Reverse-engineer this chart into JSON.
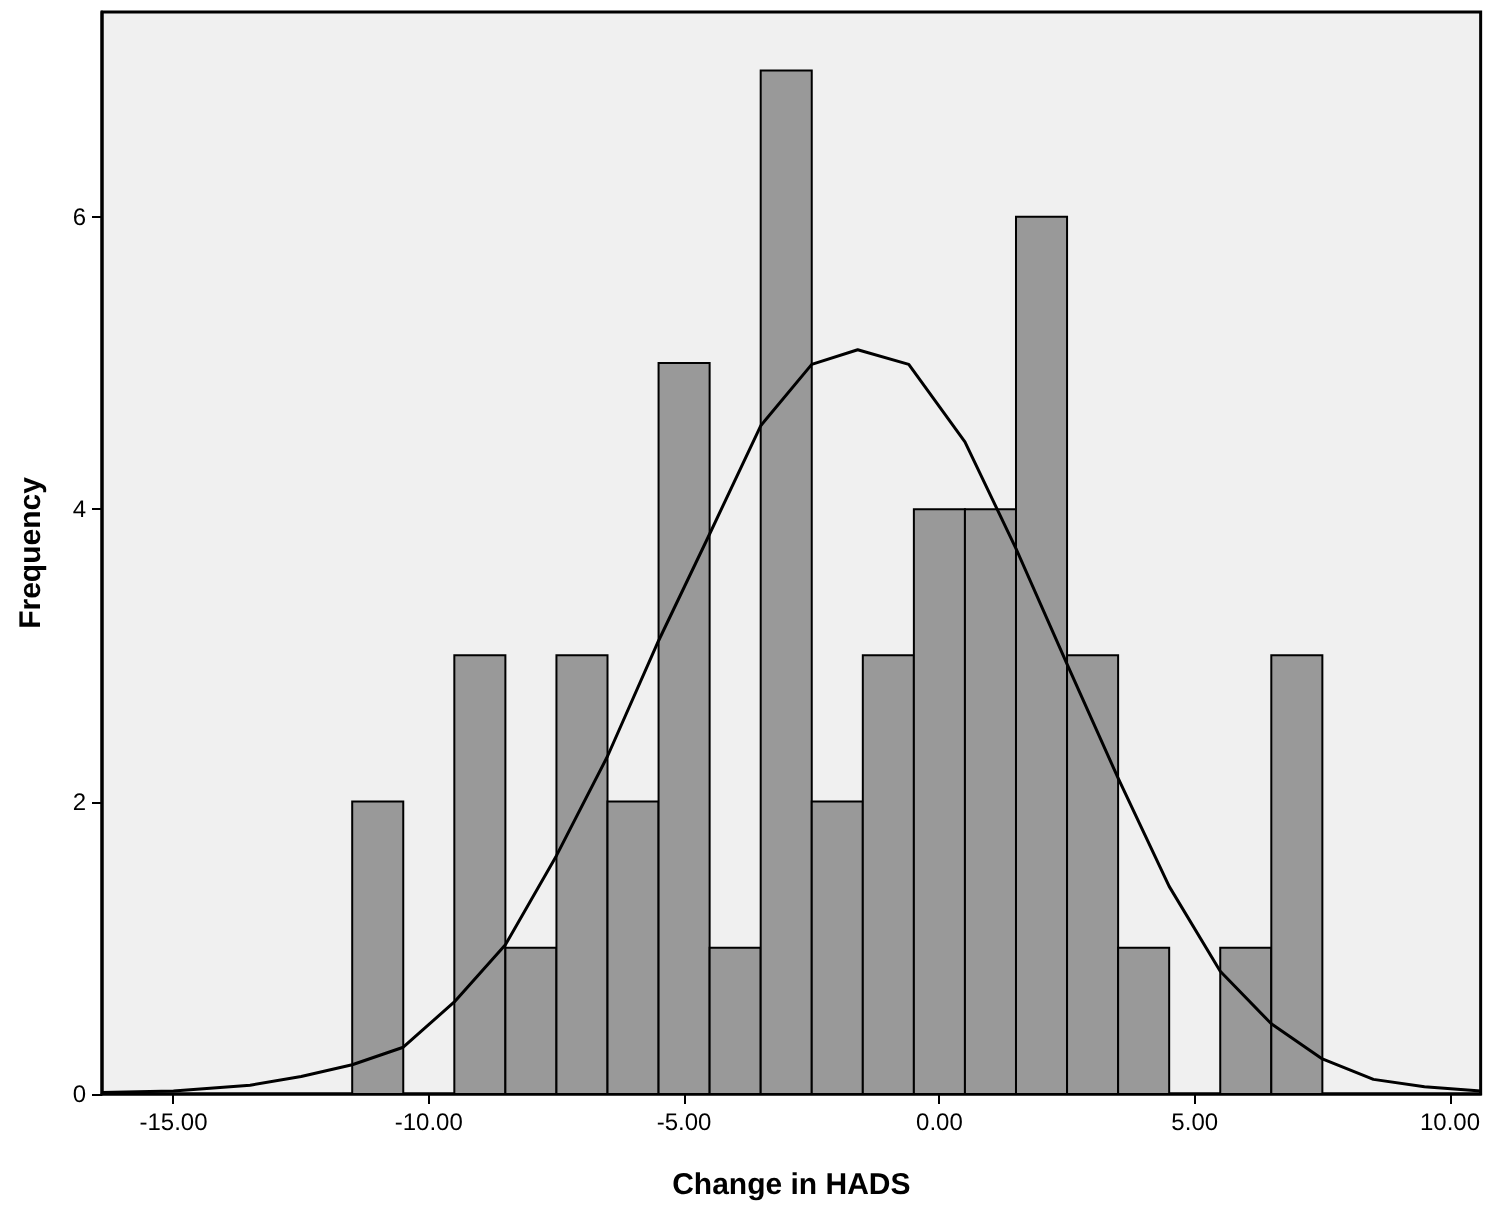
{
  "chart_data": {
    "type": "histogram",
    "xlabel": "Change in HADS",
    "ylabel": "Frequency",
    "xlim": [
      -16.4,
      10.6
    ],
    "ylim": [
      0,
      7.4
    ],
    "xticks": [
      {
        "value": -15,
        "label": "-15.00"
      },
      {
        "value": -10,
        "label": "-10.00"
      },
      {
        "value": -5,
        "label": "-5.00"
      },
      {
        "value": 0,
        "label": "0.00"
      },
      {
        "value": 5,
        "label": "5.00"
      },
      {
        "value": 10,
        "label": "10.00"
      }
    ],
    "yticks": [
      0,
      2,
      4,
      6
    ],
    "grid": false,
    "series": [
      {
        "color": "#999999",
        "bins": [
          -11.5,
          -10.5,
          -9.5,
          -8.5,
          -7.5,
          -6.5,
          -5.5,
          -4.5,
          -3.5,
          -2.5,
          -1.5,
          -0.5,
          0.5,
          1.5,
          2.5,
          3.5,
          4.5,
          5.5,
          6.5,
          7.5
        ],
        "values": [
          2,
          0,
          3,
          1,
          3,
          2,
          5,
          1,
          7,
          2,
          3,
          4,
          4,
          6,
          3,
          1,
          0,
          1,
          3
        ]
      },
      {
        "type": "line",
        "color": "#000000",
        "x": [
          -16.4,
          -15,
          -13.5,
          -12.5,
          -11.5,
          -10.5,
          -9.5,
          -8.5,
          -7.5,
          -6.5,
          -5.5,
          -4.5,
          -3.5,
          -2.5,
          -1.6,
          -0.6,
          0.5,
          1.5,
          2.5,
          3.5,
          4.5,
          5.5,
          6.5,
          7.5,
          8.5,
          9.5,
          10.6
        ],
        "values": [
          0.01,
          0.02,
          0.06,
          0.12,
          0.2,
          0.32,
          0.63,
          1.02,
          1.63,
          2.31,
          3.1,
          3.83,
          4.57,
          4.99,
          5.09,
          4.99,
          4.46,
          3.73,
          2.94,
          2.16,
          1.42,
          0.84,
          0.48,
          0.24,
          0.1,
          0.05,
          0.02
        ]
      }
    ]
  }
}
